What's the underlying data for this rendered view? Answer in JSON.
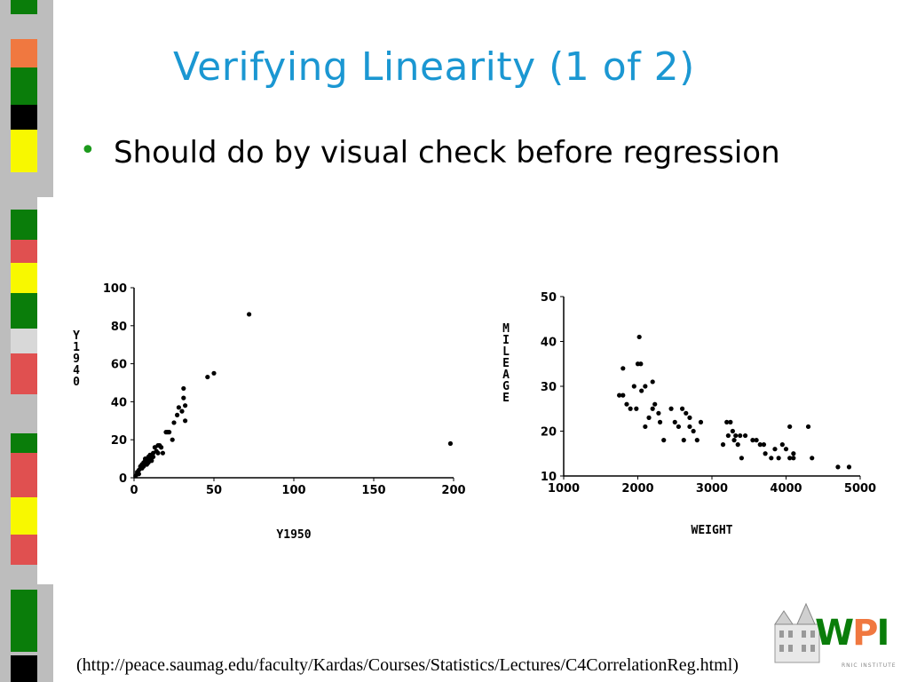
{
  "slide": {
    "title": "Verifying Linearity (1 of 2)",
    "bullet": "Should do by visual check before regression",
    "source": "(http://peace.saumag.edu/faculty/Kardas/Courses/Statistics/Lectures/C4CorrelationReg.html)",
    "logo": {
      "text_w": "W",
      "text_p": "P",
      "text_i": "I",
      "subtitle": "RNIC INSTITUTE"
    },
    "colors": {
      "title": "#1b97d2",
      "bullet": "#1c9a1c",
      "green": "#0a7d0a",
      "red": "#e05050",
      "yellow": "#f8f800",
      "orange": "#f07840"
    }
  },
  "chart_data": [
    {
      "type": "scatter",
      "xlabel": "Y1950",
      "ylabel": "Y1940",
      "xlim": [
        0,
        200
      ],
      "ylim": [
        0,
        100
      ],
      "xticks": [
        "0",
        "50",
        "100",
        "150",
        "200"
      ],
      "yticks": [
        "0",
        "20",
        "40",
        "60",
        "80",
        "100"
      ],
      "points": [
        [
          1,
          1
        ],
        [
          2,
          2
        ],
        [
          2,
          3
        ],
        [
          3,
          4
        ],
        [
          3,
          2
        ],
        [
          4,
          5
        ],
        [
          4,
          6
        ],
        [
          5,
          5
        ],
        [
          5,
          7
        ],
        [
          6,
          8
        ],
        [
          6,
          6
        ],
        [
          7,
          9
        ],
        [
          7,
          10
        ],
        [
          8,
          7
        ],
        [
          8,
          9
        ],
        [
          9,
          8
        ],
        [
          9,
          11
        ],
        [
          10,
          10
        ],
        [
          10,
          12
        ],
        [
          11,
          9
        ],
        [
          12,
          13
        ],
        [
          12,
          11
        ],
        [
          13,
          16
        ],
        [
          14,
          14
        ],
        [
          15,
          13
        ],
        [
          15,
          17
        ],
        [
          16,
          17
        ],
        [
          17,
          16
        ],
        [
          18,
          13
        ],
        [
          20,
          24
        ],
        [
          21,
          24
        ],
        [
          22,
          24
        ],
        [
          24,
          20
        ],
        [
          25,
          29
        ],
        [
          27,
          33
        ],
        [
          28,
          37
        ],
        [
          30,
          35
        ],
        [
          31,
          47
        ],
        [
          31,
          42
        ],
        [
          32,
          38
        ],
        [
          32,
          30
        ],
        [
          46,
          53
        ],
        [
          50,
          55
        ],
        [
          72,
          86
        ],
        [
          198,
          18
        ]
      ]
    },
    {
      "type": "scatter",
      "xlabel": "WEIGHT",
      "ylabel": "MILEAGE",
      "xlim": [
        1000,
        5000
      ],
      "ylim": [
        10,
        50
      ],
      "xticks": [
        "1000",
        "2000",
        "3000",
        "4000",
        "5000"
      ],
      "yticks": [
        "10",
        "20",
        "30",
        "40",
        "50"
      ],
      "points": [
        [
          1750,
          28
        ],
        [
          1800,
          28
        ],
        [
          1800,
          34
        ],
        [
          1850,
          26
        ],
        [
          1900,
          25
        ],
        [
          1950,
          30
        ],
        [
          1980,
          25
        ],
        [
          2000,
          35
        ],
        [
          2020,
          41
        ],
        [
          2040,
          35
        ],
        [
          2050,
          29
        ],
        [
          2100,
          30
        ],
        [
          2100,
          21
        ],
        [
          2150,
          23
        ],
        [
          2200,
          25
        ],
        [
          2200,
          31
        ],
        [
          2230,
          26
        ],
        [
          2280,
          24
        ],
        [
          2300,
          22
        ],
        [
          2350,
          18
        ],
        [
          2450,
          25
        ],
        [
          2500,
          22
        ],
        [
          2550,
          21
        ],
        [
          2600,
          25
        ],
        [
          2620,
          18
        ],
        [
          2650,
          24
        ],
        [
          2700,
          23
        ],
        [
          2700,
          21
        ],
        [
          2750,
          20
        ],
        [
          2800,
          18
        ],
        [
          2850,
          22
        ],
        [
          3150,
          17
        ],
        [
          3200,
          22
        ],
        [
          3220,
          19
        ],
        [
          3250,
          22
        ],
        [
          3280,
          20
        ],
        [
          3300,
          18
        ],
        [
          3320,
          19
        ],
        [
          3350,
          17
        ],
        [
          3380,
          19
        ],
        [
          3400,
          14
        ],
        [
          3450,
          19
        ],
        [
          3550,
          18
        ],
        [
          3600,
          18
        ],
        [
          3650,
          17
        ],
        [
          3700,
          17
        ],
        [
          3720,
          15
        ],
        [
          3800,
          14
        ],
        [
          3850,
          16
        ],
        [
          3900,
          14
        ],
        [
          3950,
          17
        ],
        [
          4000,
          16
        ],
        [
          4050,
          21
        ],
        [
          4050,
          14
        ],
        [
          4100,
          15
        ],
        [
          4100,
          14
        ],
        [
          4300,
          21
        ],
        [
          4350,
          14
        ],
        [
          4700,
          12
        ],
        [
          4850,
          12
        ]
      ]
    }
  ]
}
